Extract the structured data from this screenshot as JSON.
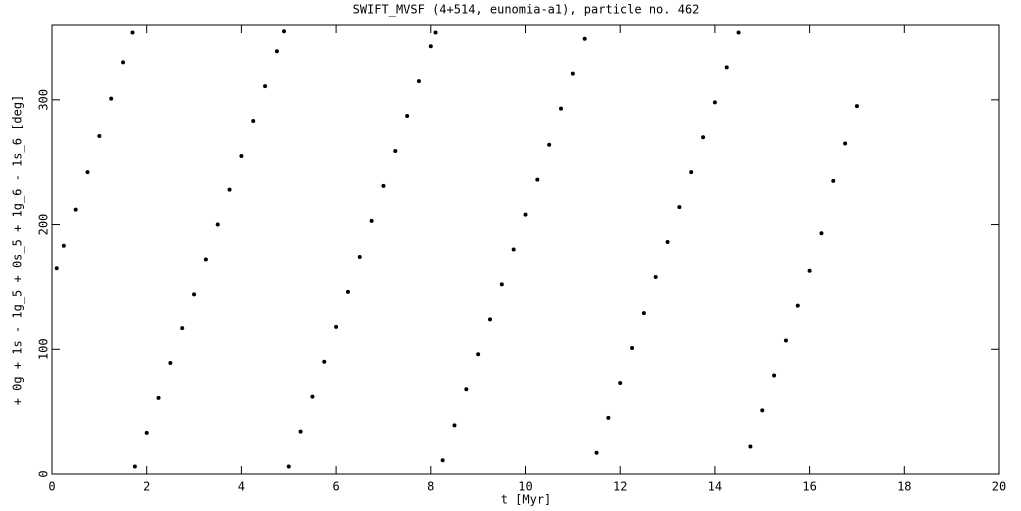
{
  "chart_data": {
    "type": "scatter",
    "title": "SWIFT_MVSF (4+514, eunomia-a1), particle no. 462",
    "x_label": "t [Myr]",
    "y_label": "+ 0g + 1s - 1g_5 + 0s_5 + 1g_6 - 1s_6 [deg]",
    "color": "#000000",
    "x": [
      0.1,
      0.25,
      0.5,
      0.75,
      1.0,
      1.25,
      1.5,
      1.7,
      1.75,
      2.0,
      2.25,
      2.5,
      2.75,
      3.0,
      3.25,
      3.5,
      3.75,
      4.0,
      4.25,
      4.5,
      4.75,
      4.9,
      5.0,
      5.25,
      5.5,
      5.75,
      6.0,
      6.25,
      6.5,
      6.75,
      7.0,
      7.25,
      7.5,
      7.75,
      8.0,
      8.1,
      8.25,
      8.5,
      8.75,
      9.0,
      9.25,
      9.5,
      9.75,
      10.0,
      10.25,
      10.5,
      10.75,
      11.0,
      11.25,
      11.5,
      11.75,
      12.0,
      12.25,
      12.5,
      12.75,
      13.0,
      13.25,
      13.5,
      13.75,
      14.0,
      14.25,
      14.5,
      14.75,
      15.0,
      15.25,
      15.5,
      15.75,
      16.0,
      16.25,
      16.5,
      16.75,
      17.0
    ],
    "y": [
      165,
      183,
      212,
      242,
      271,
      301,
      330,
      354,
      6,
      33,
      61,
      89,
      117,
      144,
      172,
      200,
      228,
      255,
      283,
      311,
      339,
      355,
      6,
      34,
      62,
      90,
      118,
      146,
      174,
      203,
      231,
      259,
      287,
      315,
      343,
      354,
      11,
      39,
      68,
      96,
      124,
      152,
      180,
      208,
      236,
      264,
      293,
      321,
      349,
      17,
      45,
      73,
      101,
      129,
      158,
      186,
      214,
      242,
      270,
      298,
      326,
      354,
      22,
      51,
      79,
      107,
      135,
      163,
      193,
      235,
      265,
      295
    ],
    "xlim": [
      0,
      20
    ],
    "xticks": [
      0,
      2,
      4,
      6,
      8,
      10,
      12,
      14,
      16,
      18,
      20
    ],
    "ylim": [
      0,
      360
    ],
    "yticks": [
      0,
      100,
      200,
      300
    ]
  }
}
